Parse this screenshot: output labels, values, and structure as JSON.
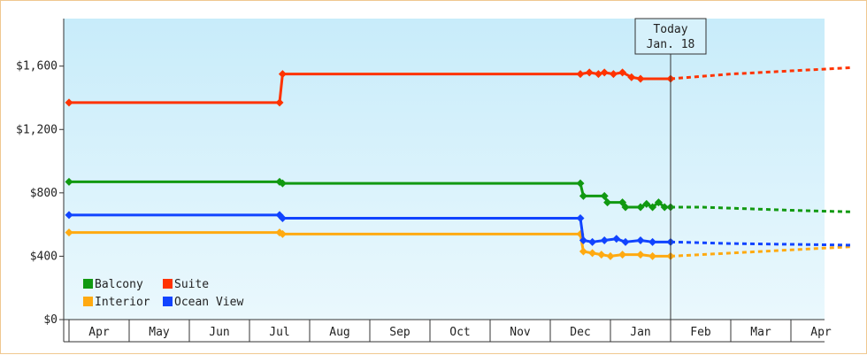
{
  "chart_data": {
    "type": "line",
    "title": "",
    "xlabel": "",
    "ylabel": "",
    "ylim": [
      0,
      1900
    ],
    "y_ticks": [
      "$0",
      "$400",
      "$800",
      "$1,200",
      "$1,600"
    ],
    "y_tick_values": [
      0,
      400,
      800,
      1200,
      1600
    ],
    "x_categories": [
      "Apr",
      "May",
      "Jun",
      "Jul",
      "Aug",
      "Sep",
      "Oct",
      "Nov",
      "Dec",
      "Jan",
      "Feb",
      "Mar",
      "Apr"
    ],
    "grid": false,
    "legend_placement": "bottom-left",
    "today_marker": {
      "line1": "Today",
      "line2": "Jan. 18",
      "month_position": 9.5
    },
    "series": [
      {
        "name": "Balcony",
        "color": "#119911",
        "history": [
          [
            -0.5,
            870
          ],
          [
            3.0,
            870
          ],
          [
            3.05,
            860
          ],
          [
            8.0,
            860
          ],
          [
            8.05,
            780
          ],
          [
            8.4,
            780
          ],
          [
            8.45,
            740
          ],
          [
            8.7,
            740
          ],
          [
            8.75,
            710
          ],
          [
            9.0,
            710
          ],
          [
            9.1,
            730
          ],
          [
            9.2,
            710
          ],
          [
            9.3,
            740
          ],
          [
            9.4,
            710
          ],
          [
            9.5,
            710
          ]
        ],
        "forecast": [
          [
            9.5,
            710
          ],
          [
            10.0,
            710
          ],
          [
            11.5,
            690
          ],
          [
            12.5,
            680
          ]
        ]
      },
      {
        "name": "Suite",
        "color": "#ff3300",
        "history": [
          [
            -0.5,
            1370
          ],
          [
            3.0,
            1370
          ],
          [
            3.05,
            1550
          ],
          [
            8.0,
            1550
          ],
          [
            8.15,
            1560
          ],
          [
            8.3,
            1550
          ],
          [
            8.4,
            1560
          ],
          [
            8.55,
            1550
          ],
          [
            8.7,
            1560
          ],
          [
            8.85,
            1530
          ],
          [
            9.0,
            1520
          ],
          [
            9.5,
            1520
          ]
        ],
        "forecast": [
          [
            9.5,
            1520
          ],
          [
            10.5,
            1550
          ],
          [
            11.5,
            1570
          ],
          [
            12.5,
            1590
          ]
        ]
      },
      {
        "name": "Interior",
        "color": "#ffaa11",
        "history": [
          [
            -0.5,
            550
          ],
          [
            3.0,
            550
          ],
          [
            3.05,
            540
          ],
          [
            8.0,
            540
          ],
          [
            8.05,
            430
          ],
          [
            8.2,
            420
          ],
          [
            8.35,
            410
          ],
          [
            8.5,
            400
          ],
          [
            8.7,
            410
          ],
          [
            9.0,
            410
          ],
          [
            9.2,
            400
          ],
          [
            9.5,
            400
          ]
        ],
        "forecast": [
          [
            9.5,
            400
          ],
          [
            10.5,
            420
          ],
          [
            11.5,
            440
          ],
          [
            12.5,
            460
          ]
        ]
      },
      {
        "name": "Ocean View",
        "color": "#1144ff",
        "history": [
          [
            -0.5,
            660
          ],
          [
            3.0,
            660
          ],
          [
            3.05,
            640
          ],
          [
            8.0,
            640
          ],
          [
            8.05,
            500
          ],
          [
            8.2,
            490
          ],
          [
            8.4,
            500
          ],
          [
            8.6,
            510
          ],
          [
            8.75,
            490
          ],
          [
            9.0,
            500
          ],
          [
            9.2,
            490
          ],
          [
            9.5,
            490
          ]
        ],
        "forecast": [
          [
            9.5,
            490
          ],
          [
            10.5,
            480
          ],
          [
            11.5,
            475
          ],
          [
            12.5,
            470
          ]
        ]
      }
    ]
  }
}
